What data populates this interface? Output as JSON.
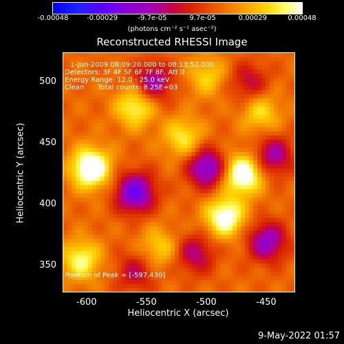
{
  "chart_data": {
    "type": "heatmap",
    "title": "Reconstructed RHESSI Image",
    "xlabel": "Heliocentric X (arcsec)",
    "ylabel": "Heliocentric Y (arcsec)",
    "xlim": [
      -620,
      -427
    ],
    "ylim": [
      329,
      524
    ],
    "x_ticks": [
      "-600",
      "-550",
      "-500",
      "-450"
    ],
    "x_tick_values": [
      -600,
      -550,
      -500,
      -450
    ],
    "y_ticks": [
      "350",
      "400",
      "450",
      "500"
    ],
    "y_tick_values": [
      350,
      400,
      450,
      500
    ],
    "colorbar": {
      "ticks": [
        "-0.00048",
        "-0.00029",
        "-9.7e-05",
        "9.7e-05",
        "0.00029",
        "0.00048"
      ],
      "tick_values": [
        -0.00048,
        -0.00029,
        -9.7e-05,
        9.7e-05,
        0.00029,
        0.00048
      ],
      "label": "(photons cm⁻² s⁻¹ asec⁻²)"
    },
    "annotations": [
      "1-Jun-2009 08:09:20.000 to 08:13:52.000",
      "Detectors: 3F 4F 5F 6F 7F 8F, Att 0",
      "Energy Range: 12.0 - 25.0 keV",
      "Clean",
      "Total counts: 8.25E+03",
      "Position of Peak = [-597,430]"
    ],
    "peak_position": [
      -597,
      430
    ],
    "hot_regions": [
      {
        "x": -597,
        "y": 430,
        "value": 0.00048
      },
      {
        "x": -470,
        "y": 425,
        "value": 0.00045
      },
      {
        "x": -485,
        "y": 390,
        "value": 0.0004
      },
      {
        "x": -560,
        "y": 480,
        "value": 0.0003
      },
      {
        "x": -520,
        "y": 455,
        "value": 0.00025
      },
      {
        "x": -605,
        "y": 355,
        "value": 0.0003
      },
      {
        "x": -540,
        "y": 365,
        "value": 0.0002
      },
      {
        "x": -455,
        "y": 475,
        "value": 0.00022
      },
      {
        "x": -500,
        "y": 505,
        "value": 0.0002
      }
    ],
    "cold_regions": [
      {
        "x": -560,
        "y": 410,
        "value": -0.00045
      },
      {
        "x": -500,
        "y": 430,
        "value": -0.0004
      },
      {
        "x": -545,
        "y": 500,
        "value": -0.0003
      },
      {
        "x": -445,
        "y": 440,
        "value": -0.0003
      },
      {
        "x": -450,
        "y": 370,
        "value": -0.00035
      },
      {
        "x": -560,
        "y": 345,
        "value": -0.0002
      },
      {
        "x": -510,
        "y": 360,
        "value": -0.00025
      },
      {
        "x": -465,
        "y": 500,
        "value": -0.0002
      }
    ],
    "timestamp": "9-May-2022 01:57"
  }
}
